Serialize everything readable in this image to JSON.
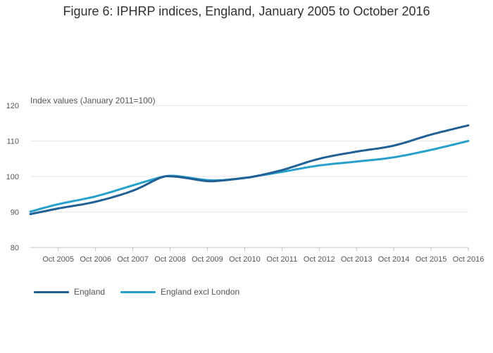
{
  "title": "Figure 6: IPHRP indices, England, January 2005 to October 2016",
  "chart_data": {
    "type": "line",
    "ylabel": "Index values (January 2011=100)",
    "ylim": [
      80,
      120
    ],
    "yticks": [
      80,
      90,
      100,
      110,
      120
    ],
    "xrange": [
      "2005-01",
      "2016-10"
    ],
    "xticks": [
      "Oct 2005",
      "Oct 2006",
      "Oct 2007",
      "Oct 2008",
      "Oct 2009",
      "Oct 2010",
      "Oct 2011",
      "Oct 2012",
      "Oct 2013",
      "Oct 2014",
      "Oct 2015",
      "Oct 2016"
    ],
    "grid": true,
    "legend_position": "bottom-left",
    "series": [
      {
        "name": "England",
        "color": "#206095",
        "points": [
          [
            "2005-01",
            89.4
          ],
          [
            "2005-10",
            91.0
          ],
          [
            "2006-10",
            92.9
          ],
          [
            "2007-10",
            96.0
          ],
          [
            "2008-07",
            99.7
          ],
          [
            "2008-11",
            100.0
          ],
          [
            "2009-03",
            99.6
          ],
          [
            "2009-10",
            98.7
          ],
          [
            "2010-03",
            98.9
          ],
          [
            "2010-10",
            99.6
          ],
          [
            "2011-01",
            100.0
          ],
          [
            "2011-10",
            101.8
          ],
          [
            "2012-10",
            105.0
          ],
          [
            "2013-10",
            107.0
          ],
          [
            "2014-10",
            108.7
          ],
          [
            "2015-10",
            111.8
          ],
          [
            "2016-10",
            114.4
          ]
        ]
      },
      {
        "name": "England excl London",
        "color": "#27a0cc",
        "points": [
          [
            "2005-01",
            90.1
          ],
          [
            "2005-10",
            92.2
          ],
          [
            "2006-10",
            94.4
          ],
          [
            "2007-10",
            97.5
          ],
          [
            "2008-07",
            99.8
          ],
          [
            "2008-11",
            100.2
          ],
          [
            "2009-03",
            99.8
          ],
          [
            "2009-10",
            99.0
          ],
          [
            "2010-03",
            99.0
          ],
          [
            "2010-10",
            99.6
          ],
          [
            "2011-01",
            100.0
          ],
          [
            "2011-10",
            101.3
          ],
          [
            "2012-10",
            103.1
          ],
          [
            "2013-10",
            104.2
          ],
          [
            "2014-10",
            105.4
          ],
          [
            "2015-10",
            107.5
          ],
          [
            "2016-10",
            110.0
          ]
        ]
      }
    ]
  }
}
